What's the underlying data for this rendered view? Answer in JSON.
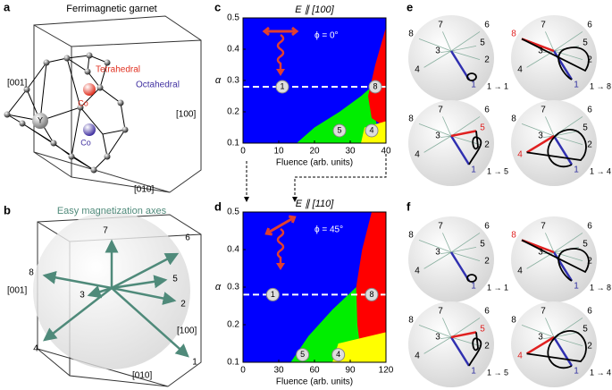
{
  "panel_labels": [
    "a",
    "b",
    "c",
    "d",
    "e",
    "f"
  ],
  "panel_a": {
    "title": "Ferrimagnetic garnet",
    "axes": [
      "[001]",
      "[100]",
      "[010]"
    ],
    "sites": [
      "Tetrahedral",
      "Octahedral"
    ],
    "atoms": [
      "Y",
      "Co",
      "Co"
    ]
  },
  "panel_b": {
    "title": "Easy magnetization axes",
    "axes": [
      "[001]",
      "[100]",
      "[010]"
    ],
    "directions": [
      "1",
      "2",
      "3",
      "4",
      "5",
      "6",
      "7",
      "8"
    ]
  },
  "charts": [
    {
      "title": "E ∥ [100]",
      "phi": "ϕ = 0°",
      "xlabel": "Fluence (arb. units)",
      "ylabel": "α",
      "xlim": [
        0,
        40
      ],
      "ylim": [
        0.1,
        0.5
      ],
      "xticks": [
        0,
        10,
        20,
        30,
        40
      ],
      "yticks": [
        0.1,
        0.2,
        0.3,
        0.4,
        0.5
      ],
      "markers": [
        "1",
        "8",
        "5",
        "4"
      ]
    },
    {
      "title": "E ∥ [110]",
      "phi": "ϕ = 45°",
      "xlabel": "Fluence (arb. units)",
      "ylabel": "α",
      "xlim": [
        0,
        120
      ],
      "ylim": [
        0.1,
        0.5
      ],
      "xticks": [
        0,
        30,
        60,
        90,
        120
      ],
      "yticks": [
        0.1,
        0.2,
        0.3,
        0.4,
        0.5
      ],
      "markers": [
        "1",
        "8",
        "5",
        "4"
      ]
    }
  ],
  "sphere_axes": [
    "1",
    "2",
    "3",
    "4",
    "5",
    "6",
    "7",
    "8"
  ],
  "panel_e": {
    "transitions": [
      "1 → 1",
      "1 → 8",
      "1 → 5",
      "1 → 4"
    ]
  },
  "panel_f": {
    "transitions": [
      "1 → 1",
      "1 → 8",
      "1 → 5",
      "1 → 4"
    ]
  }
}
